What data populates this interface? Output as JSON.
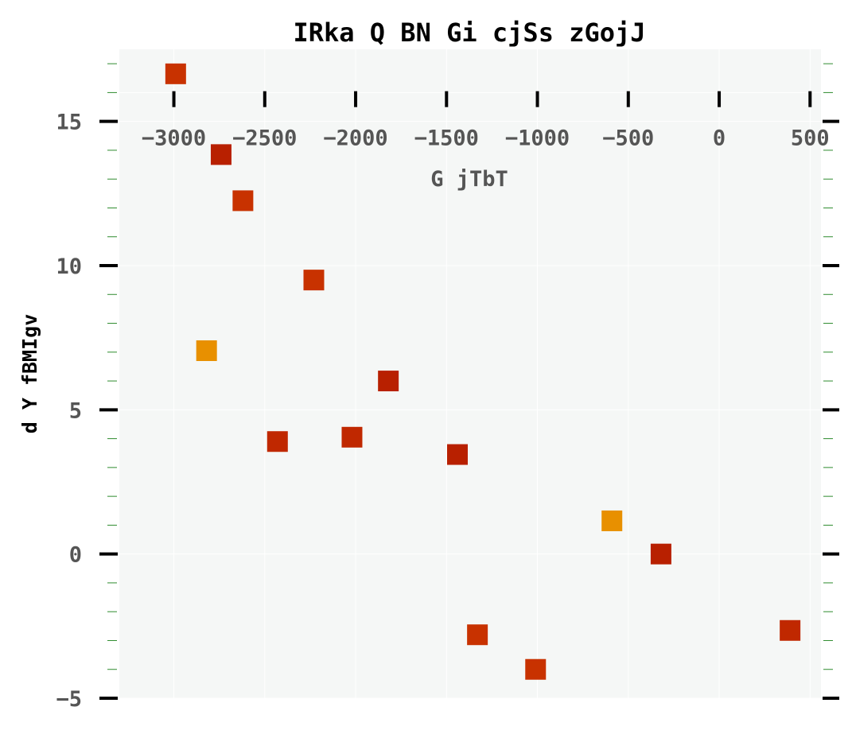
{
  "chart_data": {
    "type": "scatter",
    "title": "IRka Q BN Gi cjSs zGojJ",
    "xlabel": "G jTbT",
    "ylabel": "d  Y fBMIgv",
    "x_axis_position": "top",
    "xlim": [
      -3300,
      560
    ],
    "ylim": [
      -5,
      17.5
    ],
    "x_ticks": [
      -3000,
      -2500,
      -2000,
      -1500,
      -1000,
      -500,
      0,
      500
    ],
    "x_tick_labels": [
      "−3000",
      "−2500",
      "−2000",
      "−1500",
      "−1000",
      "−500",
      "0",
      "500"
    ],
    "y_ticks": [
      -5,
      0,
      5,
      10,
      15
    ],
    "y_tick_labels": [
      "−5",
      "0",
      "5",
      "10",
      "15"
    ],
    "grid": true,
    "marker": "square",
    "points": [
      {
        "x": -2990,
        "y": 16.65,
        "color": "#c83200"
      },
      {
        "x": -2740,
        "y": 13.85,
        "color": "#b82000"
      },
      {
        "x": -2620,
        "y": 12.25,
        "color": "#c83200"
      },
      {
        "x": -2820,
        "y": 7.05,
        "color": "#e89000"
      },
      {
        "x": -2230,
        "y": 9.5,
        "color": "#c83200"
      },
      {
        "x": -1820,
        "y": 6.0,
        "color": "#b82000"
      },
      {
        "x": -2430,
        "y": 3.9,
        "color": "#c02800"
      },
      {
        "x": -2020,
        "y": 4.05,
        "color": "#c02800"
      },
      {
        "x": -1440,
        "y": 3.45,
        "color": "#b82000"
      },
      {
        "x": -590,
        "y": 1.15,
        "color": "#e89000"
      },
      {
        "x": -320,
        "y": 0.0,
        "color": "#b82000"
      },
      {
        "x": -1330,
        "y": -2.8,
        "color": "#c83200"
      },
      {
        "x": -1010,
        "y": -4.0,
        "color": "#c83200"
      },
      {
        "x": 390,
        "y": -2.65,
        "color": "#c02800"
      }
    ],
    "colors": {
      "plot_background": "#f5f7f6",
      "grid": "#ffffff",
      "minor_tick": "#2e8b2e",
      "major_tick": "#000000"
    }
  }
}
